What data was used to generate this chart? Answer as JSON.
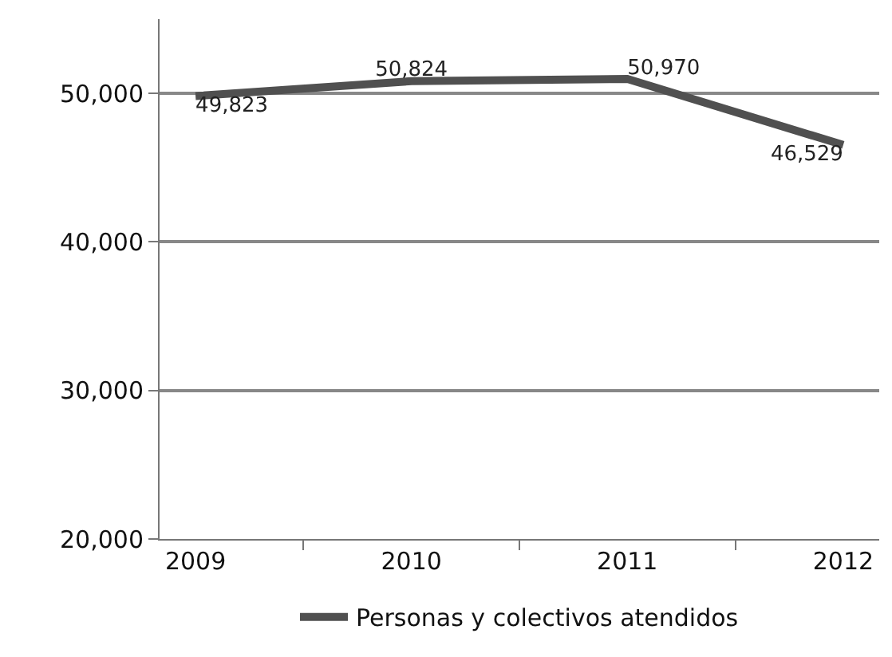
{
  "chart_data": {
    "type": "line",
    "categories": [
      "2009",
      "2010",
      "2011",
      "2012"
    ],
    "series": [
      {
        "name": "Personas y colectivos atendidos",
        "color": "#505050",
        "values": [
          49823,
          50824,
          50970,
          46529
        ],
        "value_labels": [
          "49,823",
          "50,824",
          "50,970",
          "46,529"
        ]
      }
    ],
    "ylim": [
      20000,
      55000
    ],
    "yticks": [
      {
        "value": 20000,
        "label": "20,000"
      },
      {
        "value": 30000,
        "label": "30,000"
      },
      {
        "value": 40000,
        "label": "40,000"
      },
      {
        "value": 50000,
        "label": "50,000"
      }
    ],
    "grid": "y",
    "legend": "bottom",
    "marker": "none",
    "line_style": "solid"
  }
}
